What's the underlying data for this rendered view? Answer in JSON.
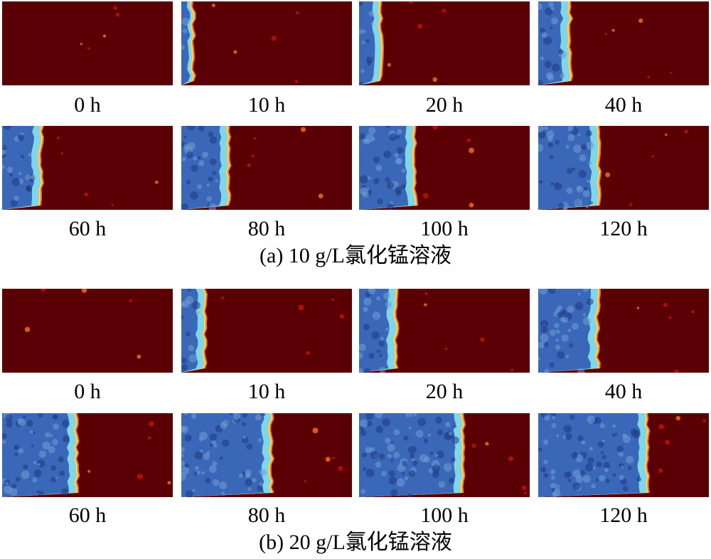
{
  "colors": {
    "background_red": "#5a0005",
    "front_yellow": "#ffd84a",
    "front_cyan": "#7fd6e8",
    "zone_blue": "#3b67b8",
    "zone_dark_blue": "#1e3a85"
  },
  "groups": [
    {
      "caption": "(a) 10 g/L氯化锰溶液",
      "frames": [
        {
          "time": "0 h",
          "front_fraction": 0.0
        },
        {
          "time": "10 h",
          "front_fraction": 0.06
        },
        {
          "time": "20 h",
          "front_fraction": 0.12
        },
        {
          "time": "40 h",
          "front_fraction": 0.18
        },
        {
          "time": "60 h",
          "front_fraction": 0.22
        },
        {
          "time": "80 h",
          "front_fraction": 0.27
        },
        {
          "time": "100 h",
          "front_fraction": 0.32
        },
        {
          "time": "120 h",
          "front_fraction": 0.35
        }
      ]
    },
    {
      "caption": "(b) 20 g/L氯化锰溶液",
      "frames": [
        {
          "time": "0 h",
          "front_fraction": 0.0
        },
        {
          "time": "10 h",
          "front_fraction": 0.13
        },
        {
          "time": "20 h",
          "front_fraction": 0.21
        },
        {
          "time": "40 h",
          "front_fraction": 0.34
        },
        {
          "time": "60 h",
          "front_fraction": 0.43
        },
        {
          "time": "80 h",
          "front_fraction": 0.52
        },
        {
          "time": "100 h",
          "front_fraction": 0.6
        },
        {
          "time": "120 h",
          "front_fraction": 0.63
        }
      ]
    }
  ]
}
